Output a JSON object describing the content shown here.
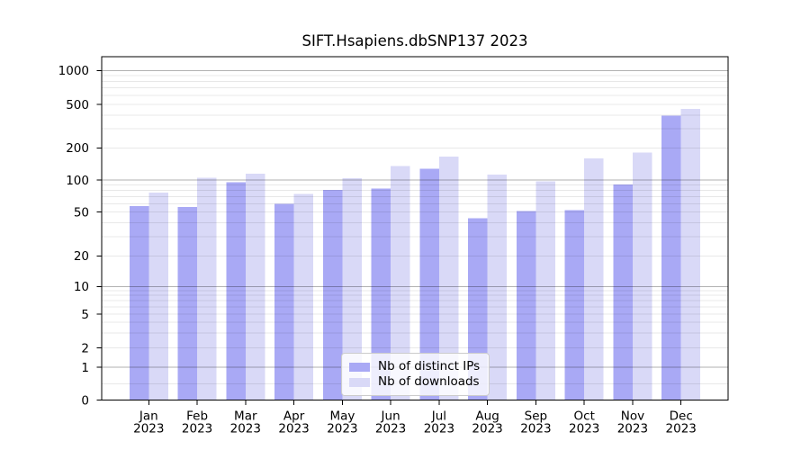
{
  "chart_data": {
    "type": "bar",
    "title": "SIFT.Hsapiens.dbSNP137 2023",
    "categories": [
      "Jan 2023",
      "Feb 2023",
      "Mar 2023",
      "Apr 2023",
      "May 2023",
      "Jun 2023",
      "Jul 2023",
      "Aug 2023",
      "Sep 2023",
      "Oct 2023",
      "Nov 2023",
      "Dec 2023"
    ],
    "series": [
      {
        "name": "Nb of distinct IPs",
        "color": "#a9a9f5",
        "values": [
          57,
          56,
          95,
          60,
          81,
          83,
          127,
          44,
          51,
          52,
          91,
          395
        ]
      },
      {
        "name": "Nb of downloads",
        "color": "#d9d9f7",
        "values": [
          76,
          105,
          115,
          74,
          104,
          135,
          165,
          112,
          97,
          160,
          180,
          455
        ]
      }
    ],
    "yscale": "symlog",
    "ylim": [
      0,
      1200
    ],
    "yticks": [
      0,
      1,
      2,
      5,
      10,
      20,
      50,
      100,
      200,
      500,
      1000
    ],
    "minor_gridlines": [
      0.5,
      3,
      4,
      6,
      7,
      8,
      9,
      30,
      40,
      60,
      70,
      80,
      90,
      300,
      400,
      600,
      700,
      800,
      900
    ],
    "grid": true,
    "legend_position": "lower center"
  },
  "colors": {
    "major_grid": "rgba(0,0,0,0.30)",
    "minor_grid": "rgba(0,0,0,0.09)",
    "axis": "#000000",
    "text": "#000000",
    "legend_border": "#cccccc"
  }
}
